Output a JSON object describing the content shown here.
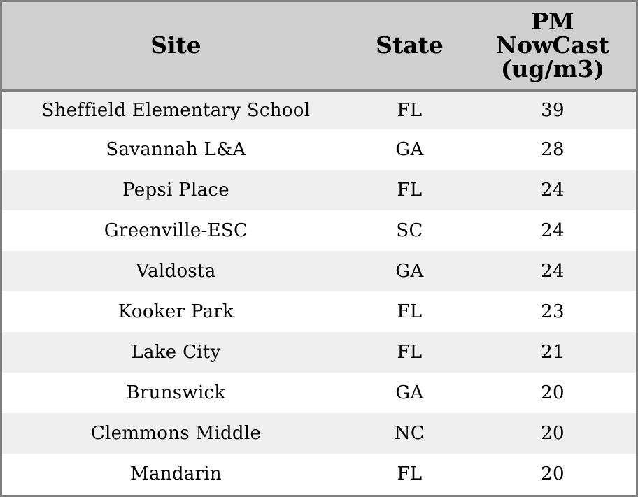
{
  "table": {
    "headers": {
      "site": "Site",
      "state": "State",
      "pm_line1": "PM",
      "pm_line2": "NowCast",
      "pm_line3": "(ug/m3)"
    },
    "rows": [
      {
        "site": "Sheffield Elementary School",
        "state": "FL",
        "pm": "39"
      },
      {
        "site": "Savannah L&A",
        "state": "GA",
        "pm": "28"
      },
      {
        "site": "Pepsi Place",
        "state": "FL",
        "pm": "24"
      },
      {
        "site": "Greenville-ESC",
        "state": "SC",
        "pm": "24"
      },
      {
        "site": "Valdosta",
        "state": "GA",
        "pm": "24"
      },
      {
        "site": "Kooker Park",
        "state": "FL",
        "pm": "23"
      },
      {
        "site": "Lake City",
        "state": "FL",
        "pm": "21"
      },
      {
        "site": "Brunswick",
        "state": "GA",
        "pm": "20"
      },
      {
        "site": "Clemmons Middle",
        "state": "NC",
        "pm": "20"
      },
      {
        "site": "Mandarin",
        "state": "FL",
        "pm": "20"
      }
    ],
    "colors": {
      "header_bg": "#cfcfcf",
      "row_alt_bg": "#efefef",
      "row_bg": "#ffffff",
      "border": "#808080"
    }
  }
}
